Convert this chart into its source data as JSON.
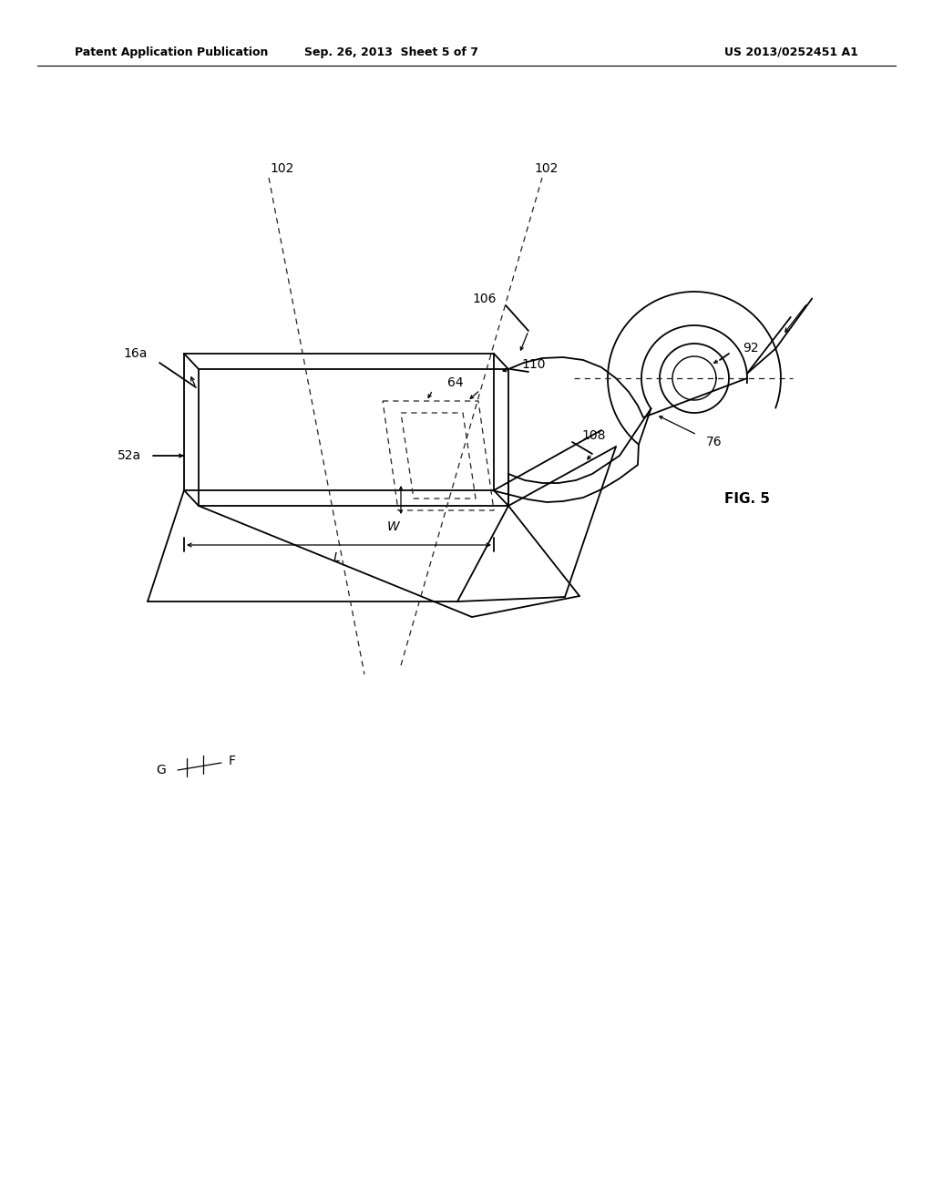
{
  "bg_color": "#ffffff",
  "lc": "#000000",
  "header_left": "Patent Application Publication",
  "header_center": "Sep. 26, 2013  Sheet 5 of 7",
  "header_right": "US 2013/0252451 A1",
  "fig_label": "FIG. 5",
  "lw_main": 1.3,
  "lw_thin": 0.9,
  "lw_dash": 0.9,
  "label_fs": 10
}
